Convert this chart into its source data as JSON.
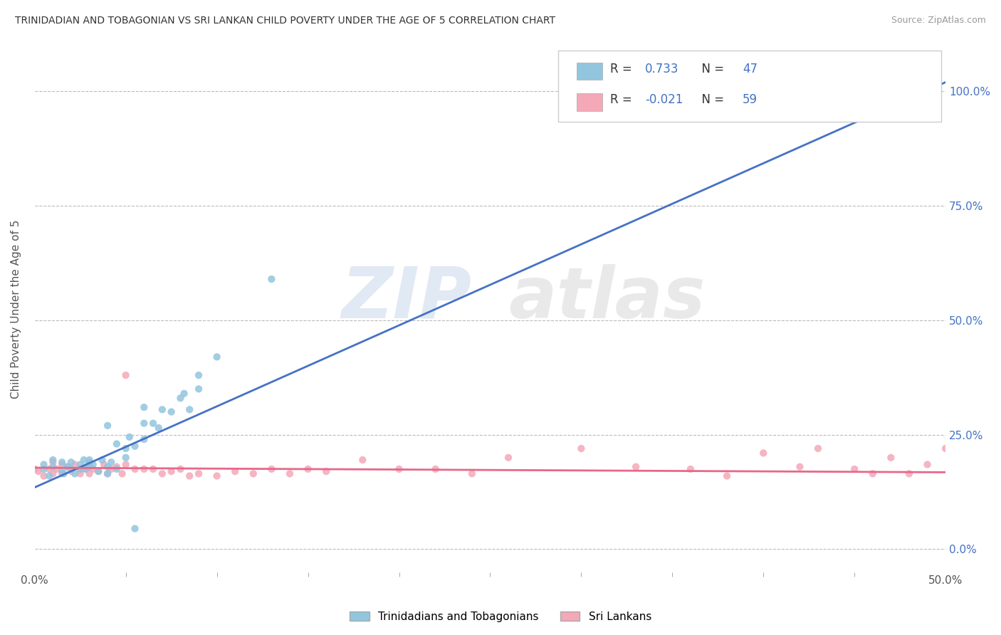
{
  "title": "TRINIDADIAN AND TOBAGONIAN VS SRI LANKAN CHILD POVERTY UNDER THE AGE OF 5 CORRELATION CHART",
  "source": "Source: ZipAtlas.com",
  "ylabel": "Child Poverty Under the Age of 5",
  "xlim": [
    0.0,
    0.5
  ],
  "ylim": [
    -0.05,
    1.1
  ],
  "xtick_values": [
    0.0,
    0.5
  ],
  "xtick_labels": [
    "0.0%",
    "50.0%"
  ],
  "ytick_values": [
    0.0,
    0.25,
    0.5,
    0.75,
    1.0
  ],
  "ytick_labels": [
    "0.0%",
    "25.0%",
    "50.0%",
    "75.0%",
    "100.0%"
  ],
  "blue_R": 0.733,
  "blue_N": 47,
  "pink_R": -0.021,
  "pink_N": 59,
  "blue_color": "#92C5DE",
  "pink_color": "#F4A8B8",
  "blue_line_color": "#4472C4",
  "pink_line_color": "#E8678A",
  "watermark_zip": "ZIP",
  "watermark_atlas": "atlas",
  "legend_label_blue": "Trinidadians and Tobagonians",
  "legend_label_pink": "Sri Lankans",
  "background_color": "#FFFFFF",
  "grid_color": "#BBBBBB",
  "blue_scatter_x": [
    0.005,
    0.005,
    0.008,
    0.01,
    0.01,
    0.015,
    0.015,
    0.016,
    0.018,
    0.02,
    0.02,
    0.022,
    0.025,
    0.025,
    0.027,
    0.028,
    0.03,
    0.03,
    0.03,
    0.032,
    0.035,
    0.037,
    0.04,
    0.04,
    0.04,
    0.042,
    0.045,
    0.045,
    0.05,
    0.05,
    0.052,
    0.055,
    0.06,
    0.06,
    0.06,
    0.065,
    0.068,
    0.07,
    0.075,
    0.08,
    0.082,
    0.085,
    0.09,
    0.09,
    0.1,
    0.13,
    0.055
  ],
  "blue_scatter_y": [
    0.175,
    0.185,
    0.16,
    0.18,
    0.195,
    0.17,
    0.19,
    0.165,
    0.18,
    0.175,
    0.19,
    0.165,
    0.175,
    0.185,
    0.195,
    0.175,
    0.18,
    0.19,
    0.195,
    0.185,
    0.17,
    0.195,
    0.165,
    0.18,
    0.27,
    0.19,
    0.175,
    0.23,
    0.2,
    0.22,
    0.245,
    0.225,
    0.24,
    0.275,
    0.31,
    0.275,
    0.265,
    0.305,
    0.3,
    0.33,
    0.34,
    0.305,
    0.35,
    0.38,
    0.42,
    0.59,
    0.045
  ],
  "pink_scatter_x": [
    0.0,
    0.002,
    0.005,
    0.008,
    0.01,
    0.01,
    0.012,
    0.015,
    0.015,
    0.018,
    0.02,
    0.022,
    0.025,
    0.025,
    0.028,
    0.03,
    0.03,
    0.032,
    0.035,
    0.038,
    0.04,
    0.042,
    0.045,
    0.048,
    0.05,
    0.05,
    0.055,
    0.06,
    0.065,
    0.07,
    0.075,
    0.08,
    0.085,
    0.09,
    0.1,
    0.11,
    0.12,
    0.13,
    0.14,
    0.15,
    0.16,
    0.18,
    0.2,
    0.22,
    0.24,
    0.26,
    0.3,
    0.33,
    0.36,
    0.38,
    0.4,
    0.42,
    0.43,
    0.45,
    0.46,
    0.47,
    0.48,
    0.49,
    0.5
  ],
  "pink_scatter_y": [
    0.175,
    0.17,
    0.16,
    0.175,
    0.165,
    0.19,
    0.175,
    0.165,
    0.185,
    0.18,
    0.17,
    0.185,
    0.175,
    0.165,
    0.175,
    0.18,
    0.165,
    0.175,
    0.17,
    0.185,
    0.165,
    0.175,
    0.18,
    0.165,
    0.185,
    0.38,
    0.175,
    0.175,
    0.175,
    0.165,
    0.17,
    0.175,
    0.16,
    0.165,
    0.16,
    0.17,
    0.165,
    0.175,
    0.165,
    0.175,
    0.17,
    0.195,
    0.175,
    0.175,
    0.165,
    0.2,
    0.22,
    0.18,
    0.175,
    0.16,
    0.21,
    0.18,
    0.22,
    0.175,
    0.165,
    0.2,
    0.165,
    0.185,
    0.22
  ],
  "blue_line_x": [
    0.0,
    0.5
  ],
  "blue_line_y": [
    0.135,
    1.02
  ],
  "pink_line_x": [
    0.0,
    0.5
  ],
  "pink_line_y": [
    0.178,
    0.168
  ]
}
